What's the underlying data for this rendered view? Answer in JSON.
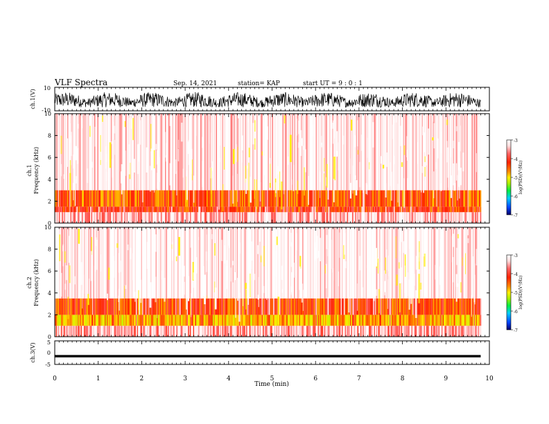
{
  "header": {
    "title": "VLF Spectra",
    "date": "Sep. 14, 2021",
    "station": "station= KAP",
    "start": "start  UT =  9 : 0  : 1"
  },
  "colorbar": {
    "label": "log(PSD)(V²/Hz)",
    "ticks": [
      "-3",
      "-4",
      "-5",
      "-6",
      "-7"
    ],
    "range": [
      -7,
      -3
    ],
    "colors": [
      "#000066",
      "#0044ff",
      "#00ccff",
      "#00ee44",
      "#aaee00",
      "#ffee00",
      "#ff8800",
      "#ff2200",
      "#ff6666",
      "#ffdddd",
      "#ffffff"
    ]
  },
  "chart_data": [
    {
      "type": "line",
      "panel": "ch.1 waveform",
      "ylabel": "ch.1(V)",
      "ylim": [
        -10,
        10
      ],
      "yticks": [
        "10",
        "-10"
      ],
      "xlim": [
        0,
        10
      ],
      "description_units": "V",
      "amplitude_range": [
        -6,
        7
      ],
      "color": "#000000"
    },
    {
      "type": "heatmap",
      "panel": "ch.1 spectrogram",
      "ylabel": "ch.1\nFrequency  (kHz)",
      "ylim": [
        0,
        10
      ],
      "yticks": [
        "0",
        "2",
        "4",
        "6",
        "8",
        "10"
      ],
      "xlim": [
        0,
        9.8
      ],
      "zlim": [
        -7,
        -3
      ],
      "bands": [
        {
          "freq": [
            0,
            1.0
          ],
          "log_psd": -3.5
        },
        {
          "freq": [
            1.0,
            1.5
          ],
          "log_psd": -4.2
        },
        {
          "freq": [
            1.5,
            3.0
          ],
          "log_psd": -4.4
        },
        {
          "freq": [
            3.0,
            10.0
          ],
          "log_psd": -3.3
        }
      ]
    },
    {
      "type": "heatmap",
      "panel": "ch.2 spectrogram",
      "ylabel": "ch.2\nFrequency  (kHz)",
      "ylim": [
        0,
        10
      ],
      "yticks": [
        "0",
        "2",
        "4",
        "6",
        "8",
        "10"
      ],
      "xlim": [
        0,
        9.8
      ],
      "zlim": [
        -7,
        -3
      ],
      "bands": [
        {
          "freq": [
            0,
            1.0
          ],
          "log_psd": -3.6
        },
        {
          "freq": [
            1.0,
            2.0
          ],
          "log_psd": -4.8
        },
        {
          "freq": [
            2.0,
            3.5
          ],
          "log_psd": -4.3
        },
        {
          "freq": [
            3.5,
            10.0
          ],
          "log_psd": -3.2
        }
      ]
    },
    {
      "type": "line",
      "panel": "ch.3 waveform",
      "ylabel": "ch.3(V)",
      "ylim": [
        -5,
        5
      ],
      "yticks": [
        "5",
        "0",
        "-5"
      ],
      "xlim": [
        0,
        10
      ],
      "level": -1.5,
      "amplitude_range": [
        -2,
        -1
      ],
      "color": "#000000"
    }
  ],
  "xaxis": {
    "label": "Time  (min)",
    "ticks": [
      "0",
      "1",
      "2",
      "3",
      "4",
      "5",
      "6",
      "7",
      "8",
      "9",
      "10"
    ],
    "range": [
      0,
      10
    ]
  }
}
